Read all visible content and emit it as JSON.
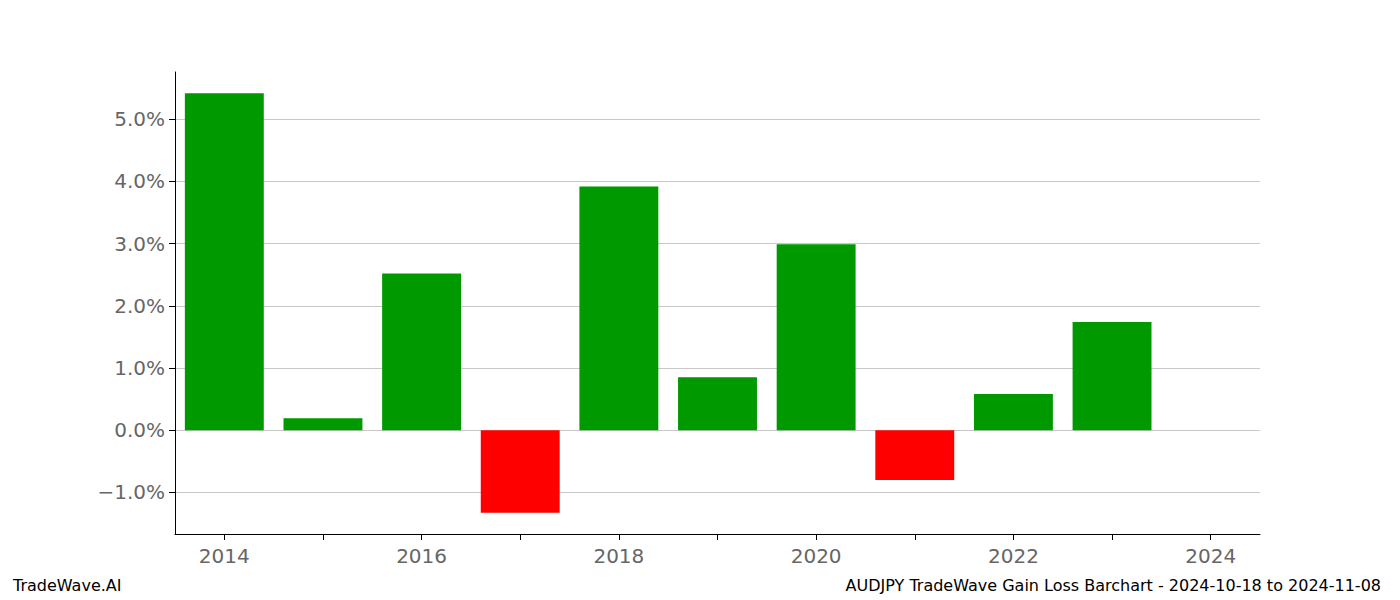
{
  "chart_data": {
    "type": "bar",
    "title": "AUDJPY TradeWave Gain Loss Barchart - 2024-10-18 to 2024-11-08",
    "subtitle": "TradeWave.AI",
    "categories": [
      "2014",
      null,
      "2016",
      null,
      "2018",
      null,
      "2020",
      null,
      "2022",
      null,
      "2024"
    ],
    "values": [
      5.42,
      0.19,
      2.52,
      -1.33,
      3.92,
      0.85,
      2.99,
      -0.8,
      0.58,
      1.74,
      null
    ],
    "colors": [
      "#009900",
      "#009900",
      "#009900",
      "#ff0000",
      "#009900",
      "#009900",
      "#009900",
      "#ff0000",
      "#009900",
      "#009900",
      null
    ],
    "ylim": [
      -1.67,
      5.76
    ],
    "yticks": [
      {
        "value": -1,
        "label": "−1.0%"
      },
      {
        "value": 0,
        "label": "0.0%"
      },
      {
        "value": 1,
        "label": "1.0%"
      },
      {
        "value": 2,
        "label": "2.0%"
      },
      {
        "value": 3,
        "label": "3.0%"
      },
      {
        "value": 4,
        "label": "4.0%"
      },
      {
        "value": 5,
        "label": "5.0%"
      }
    ],
    "grid": true
  }
}
